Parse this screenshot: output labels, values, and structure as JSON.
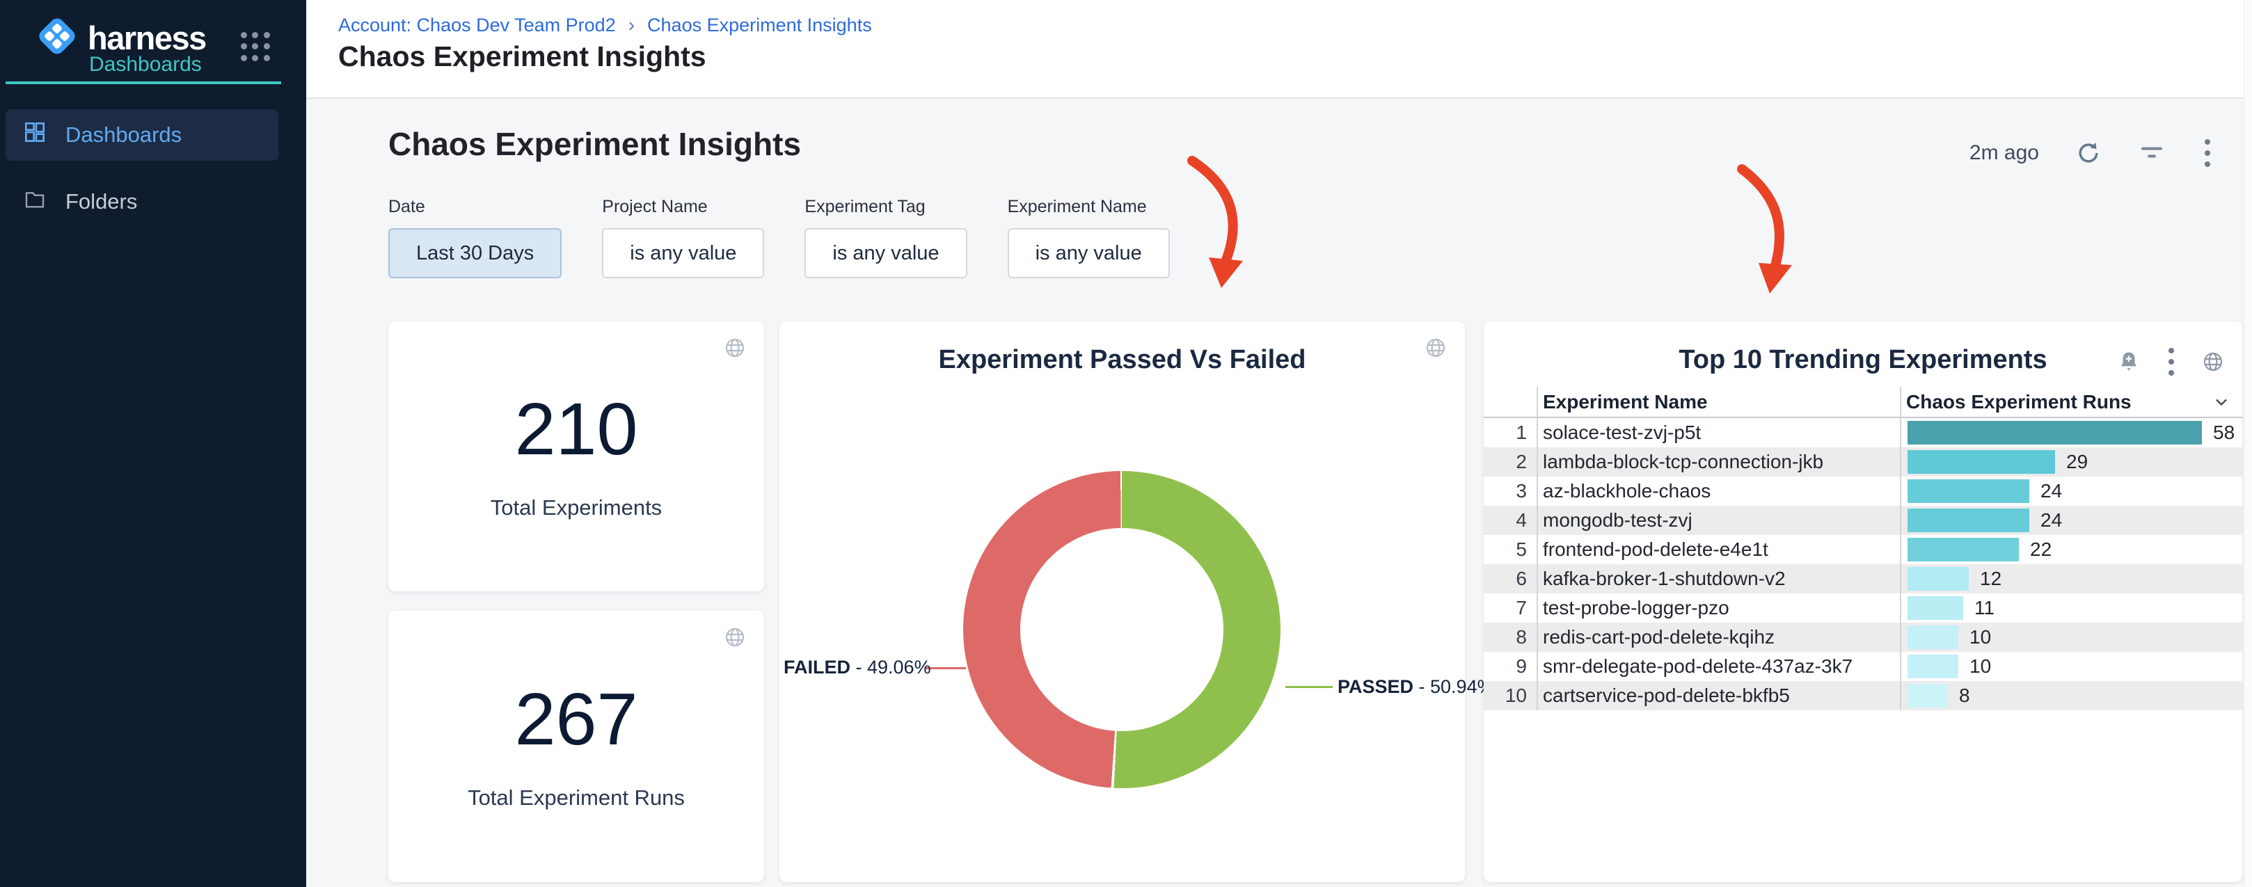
{
  "sidebar": {
    "brand": "harness",
    "module": "Dashboards",
    "items": [
      {
        "label": "Dashboards",
        "active": true
      },
      {
        "label": "Folders",
        "active": false
      }
    ]
  },
  "breadcrumb": {
    "account": "Account: Chaos Dev Team Prod2",
    "separator": "›",
    "current": "Chaos Experiment Insights"
  },
  "page": {
    "title": "Chaos Experiment Insights"
  },
  "main": {
    "heading": "Chaos Experiment Insights",
    "last_refresh": "2m ago"
  },
  "filters": [
    {
      "label": "Date",
      "value": "Last 30 Days",
      "selected": true
    },
    {
      "label": "Project Name",
      "value": "is any value",
      "selected": false
    },
    {
      "label": "Experiment Tag",
      "value": "is any value",
      "selected": false
    },
    {
      "label": "Experiment Name",
      "value": "is any value",
      "selected": false
    }
  ],
  "stats": [
    {
      "value": "210",
      "label": "Total Experiments"
    },
    {
      "value": "267",
      "label": "Total Experiment Runs"
    }
  ],
  "chart_data": [
    {
      "type": "pie",
      "title": "Experiment Passed Vs Failed",
      "legend_position": "callout-lines",
      "series": [
        {
          "name": "PASSED",
          "value": 50.94,
          "color": "#8fc04d"
        },
        {
          "name": "FAILED",
          "value": 49.06,
          "color": "#de6a68"
        }
      ],
      "callouts": {
        "failed": {
          "name": "FAILED",
          "suffix": " - 49.06%"
        },
        "passed": {
          "name": "PASSED",
          "suffix": " - 50.94%"
        }
      }
    },
    {
      "type": "bar",
      "title": "Top 10 Trending Experiments",
      "columns": {
        "rank": "",
        "name": "Experiment Name",
        "runs": "Chaos Experiment Runs"
      },
      "max_value": 58,
      "rows": [
        {
          "rank": "1",
          "name": "solace-test-zvj-p5t",
          "value": 58,
          "color": "#4ba1ab"
        },
        {
          "rank": "2",
          "name": "lambda-block-tcp-connection-jkb",
          "value": 29,
          "color": "#5ec8d7"
        },
        {
          "rank": "3",
          "name": "az-blackhole-chaos",
          "value": 24,
          "color": "#66ccd9"
        },
        {
          "rank": "4",
          "name": "mongodb-test-zvj",
          "value": 24,
          "color": "#66ccd9"
        },
        {
          "rank": "5",
          "name": "frontend-pod-delete-e4e1t",
          "value": 22,
          "color": "#70d0dc"
        },
        {
          "rank": "6",
          "name": "kafka-broker-1-shutdown-v2",
          "value": 12,
          "color": "#b2ebf3"
        },
        {
          "rank": "7",
          "name": "test-probe-logger-pzo",
          "value": 11,
          "color": "#b8edf4"
        },
        {
          "rank": "8",
          "name": "redis-cart-pod-delete-kqihz",
          "value": 10,
          "color": "#c3f1f7"
        },
        {
          "rank": "9",
          "name": "smr-delegate-pod-delete-437az-3k7",
          "value": 10,
          "color": "#c3f1f7"
        },
        {
          "rank": "10",
          "name": "cartservice-pod-delete-bkfb5",
          "value": 8,
          "color": "#cdf4f9"
        }
      ]
    }
  ],
  "icons": {
    "apps_grid": "nine-dot-grid",
    "dashboard": "dashboard-blocks",
    "folder": "folder-outline",
    "refresh": "circular-arrow",
    "filter": "filter-lines",
    "kebab": "vertical-dots",
    "globe": "globe",
    "bell_plus": "bell-plus",
    "chevron_down": "chevron-down"
  },
  "colors": {
    "sidebar_bg": "#0e1c2e",
    "accent_teal": "#3fc6c2",
    "link_blue": "#2e6bdb",
    "passed_green": "#8fc04d",
    "failed_red": "#de6a68",
    "annotation_arrow_red": "#e84327"
  }
}
